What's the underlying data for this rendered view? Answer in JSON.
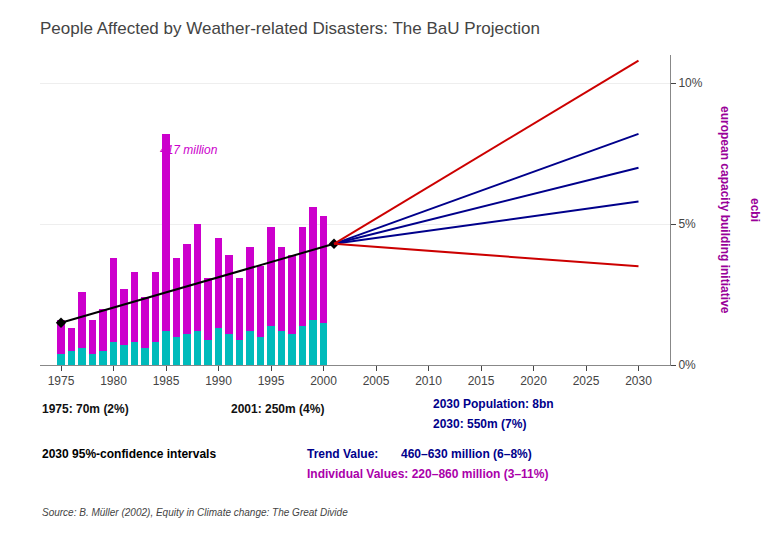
{
  "chart_data": {
    "type": "bar",
    "stacked": true,
    "title": "People Affected by Weather-related Disasters: The BaU Projection",
    "xlim": [
      1973,
      2033
    ],
    "xticks": [
      1975,
      1980,
      1985,
      1990,
      1995,
      2000,
      2005,
      2010,
      2015,
      2020,
      2025,
      2030
    ],
    "ylim": [
      0,
      11
    ],
    "yticks": [
      {
        "value": 0,
        "label": "0%"
      },
      {
        "value": 5,
        "label": "5%"
      },
      {
        "value": 10,
        "label": "10%"
      }
    ],
    "grid": "y",
    "legend": false,
    "series": [
      {
        "type": "bar",
        "color": "#00BBBB",
        "x": [
          1975,
          1976,
          1977,
          1978,
          1979,
          1980,
          1981,
          1982,
          1983,
          1984,
          1985,
          1986,
          1987,
          1988,
          1989,
          1990,
          1991,
          1992,
          1993,
          1994,
          1995,
          1996,
          1997,
          1998,
          1999,
          2000
        ],
        "values": [
          0.4,
          0.5,
          0.6,
          0.4,
          0.5,
          0.8,
          0.7,
          0.8,
          0.6,
          0.8,
          1.2,
          1.0,
          1.1,
          1.2,
          0.9,
          1.3,
          1.1,
          0.9,
          1.2,
          1.0,
          1.4,
          1.2,
          1.1,
          1.4,
          1.6,
          1.5
        ]
      },
      {
        "type": "bar",
        "color": "#CC00CC",
        "x": [
          1975,
          1976,
          1977,
          1978,
          1979,
          1980,
          1981,
          1982,
          1983,
          1984,
          1985,
          1986,
          1987,
          1988,
          1989,
          1990,
          1991,
          1992,
          1993,
          1994,
          1995,
          1996,
          1997,
          1998,
          1999,
          2000
        ],
        "values": [
          1.2,
          0.8,
          2.0,
          1.2,
          1.5,
          3.0,
          2.0,
          2.5,
          1.8,
          2.5,
          7.0,
          2.8,
          3.2,
          3.8,
          2.2,
          3.2,
          2.8,
          2.2,
          3.0,
          2.5,
          3.5,
          3.0,
          2.8,
          3.5,
          4.0,
          3.8
        ]
      },
      {
        "type": "line",
        "color": "#000000",
        "marker": "diamond",
        "line_style": "solid",
        "x": [
          1975,
          2001
        ],
        "values": [
          1.5,
          4.3
        ]
      },
      {
        "type": "line",
        "color": "#00008B",
        "line_style": "solid",
        "x": [
          2001,
          2030
        ],
        "values": [
          4.3,
          7.0
        ]
      },
      {
        "type": "line",
        "color": "#00008B",
        "line_style": "solid",
        "x": [
          2001,
          2030
        ],
        "values": [
          4.3,
          8.2
        ]
      },
      {
        "type": "line",
        "color": "#00008B",
        "line_style": "solid",
        "x": [
          2001,
          2030
        ],
        "values": [
          4.3,
          5.8
        ]
      },
      {
        "type": "line",
        "color": "#CC0000",
        "line_style": "solid",
        "x": [
          2001,
          2030
        ],
        "values": [
          4.3,
          10.8
        ]
      },
      {
        "type": "line",
        "color": "#CC0000",
        "line_style": "solid",
        "x": [
          2001,
          2030
        ],
        "values": [
          4.3,
          3.5
        ]
      }
    ],
    "annotations": [
      {
        "text": "417 million",
        "x": 1984.2,
        "y": 7.3,
        "color": "#CC00CC"
      },
      {
        "text": "1975: 70m (2%)",
        "color": "#111111"
      },
      {
        "text": "2001: 250m (4%)",
        "color": "#111111"
      },
      {
        "text": "2030 Population: 8bn",
        "color": "#00008B"
      },
      {
        "text": "2030: 550m (7%)",
        "color": "#00008B"
      },
      {
        "text": "2030 95%-confidence intervals",
        "color": "#000000"
      },
      {
        "text": "Trend Value:",
        "color": "#00008B"
      },
      {
        "text": "460–630 million (6–8%)",
        "color": "#00008B"
      },
      {
        "text": "Individual Values: 220–860 million (3–11%)",
        "color": "#AA00AA"
      },
      {
        "text": "Source: B. Müller (2002), Equity in Climate change: The Great Divide",
        "color": "#444444"
      },
      {
        "text": "european capacity building initiative",
        "color": "#990099"
      },
      {
        "text": "ecbi",
        "color": "#990099"
      }
    ]
  }
}
